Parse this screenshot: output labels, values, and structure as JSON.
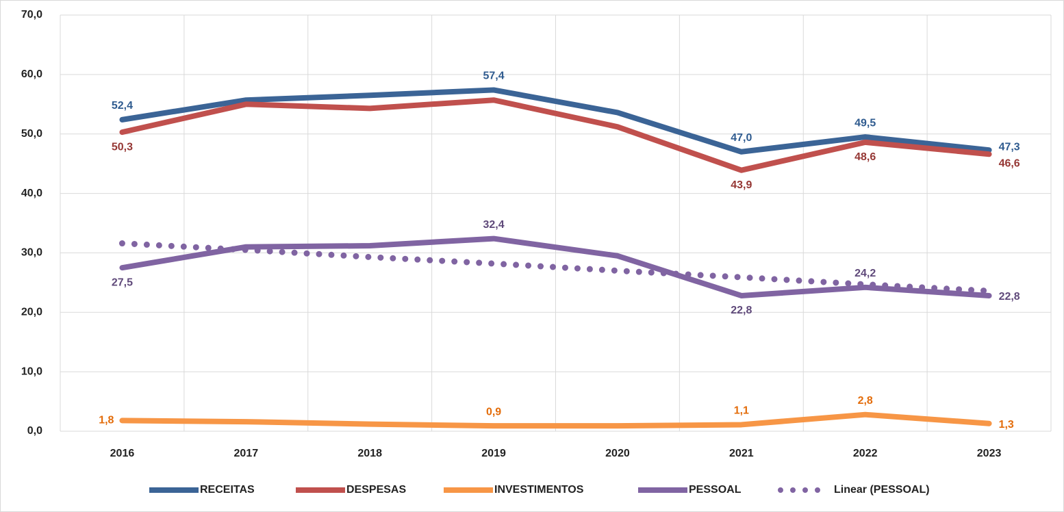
{
  "chart_data": {
    "type": "line",
    "categories": [
      "2016",
      "2017",
      "2018",
      "2019",
      "2020",
      "2021",
      "2022",
      "2023"
    ],
    "ylim": [
      0,
      70
    ],
    "yticks": [
      {
        "value": 0,
        "label": "0,0"
      },
      {
        "value": 10,
        "label": "10,0"
      },
      {
        "value": 20,
        "label": "20,0"
      },
      {
        "value": 30,
        "label": "30,0"
      },
      {
        "value": 40,
        "label": "40,0"
      },
      {
        "value": 50,
        "label": "50,0"
      },
      {
        "value": 60,
        "label": "60,0"
      },
      {
        "value": 70,
        "label": "70,0"
      }
    ],
    "grid": true,
    "legend": "bottom",
    "series": [
      {
        "name": "RECEITAS",
        "color": "#3b6496",
        "label_color": "#2f5b8f",
        "style": "solid",
        "values": [
          52.4,
          55.7,
          56.5,
          57.4,
          53.6,
          47.0,
          49.5,
          47.3
        ],
        "value_labels": [
          "52,4",
          null,
          null,
          "57,4",
          null,
          "47,0",
          "49,5",
          "47,3"
        ]
      },
      {
        "name": "DESPESAS",
        "color": "#c0504d",
        "label_color": "#953734",
        "style": "solid",
        "values": [
          50.3,
          55.0,
          54.3,
          55.7,
          51.2,
          43.9,
          48.6,
          46.6
        ],
        "value_labels": [
          "50,3",
          null,
          null,
          null,
          null,
          "43,9",
          "48,6",
          "46,6"
        ]
      },
      {
        "name": "INVESTIMENTOS",
        "color": "#f79646",
        "label_color": "#e36c0a",
        "style": "solid",
        "values": [
          1.8,
          1.6,
          1.2,
          0.9,
          0.9,
          1.1,
          2.8,
          1.3
        ],
        "value_labels": [
          "1,8",
          null,
          null,
          "0,9",
          null,
          "1,1",
          "2,8",
          "1,3"
        ]
      },
      {
        "name": "PESSOAL",
        "color": "#8064a2",
        "label_color": "#5f497a",
        "style": "solid",
        "values": [
          27.5,
          31.0,
          31.2,
          32.4,
          29.5,
          22.8,
          24.2,
          22.8
        ],
        "value_labels": [
          "27,5",
          null,
          null,
          "32,4",
          null,
          "22,8",
          "24,2",
          "22,8"
        ]
      },
      {
        "name": "Linear (PESSOAL)",
        "color": "#8064a2",
        "style": "dotted",
        "values": [
          31.6,
          30.5,
          29.3,
          28.2,
          27.0,
          25.9,
          24.7,
          23.6
        ]
      }
    ]
  }
}
